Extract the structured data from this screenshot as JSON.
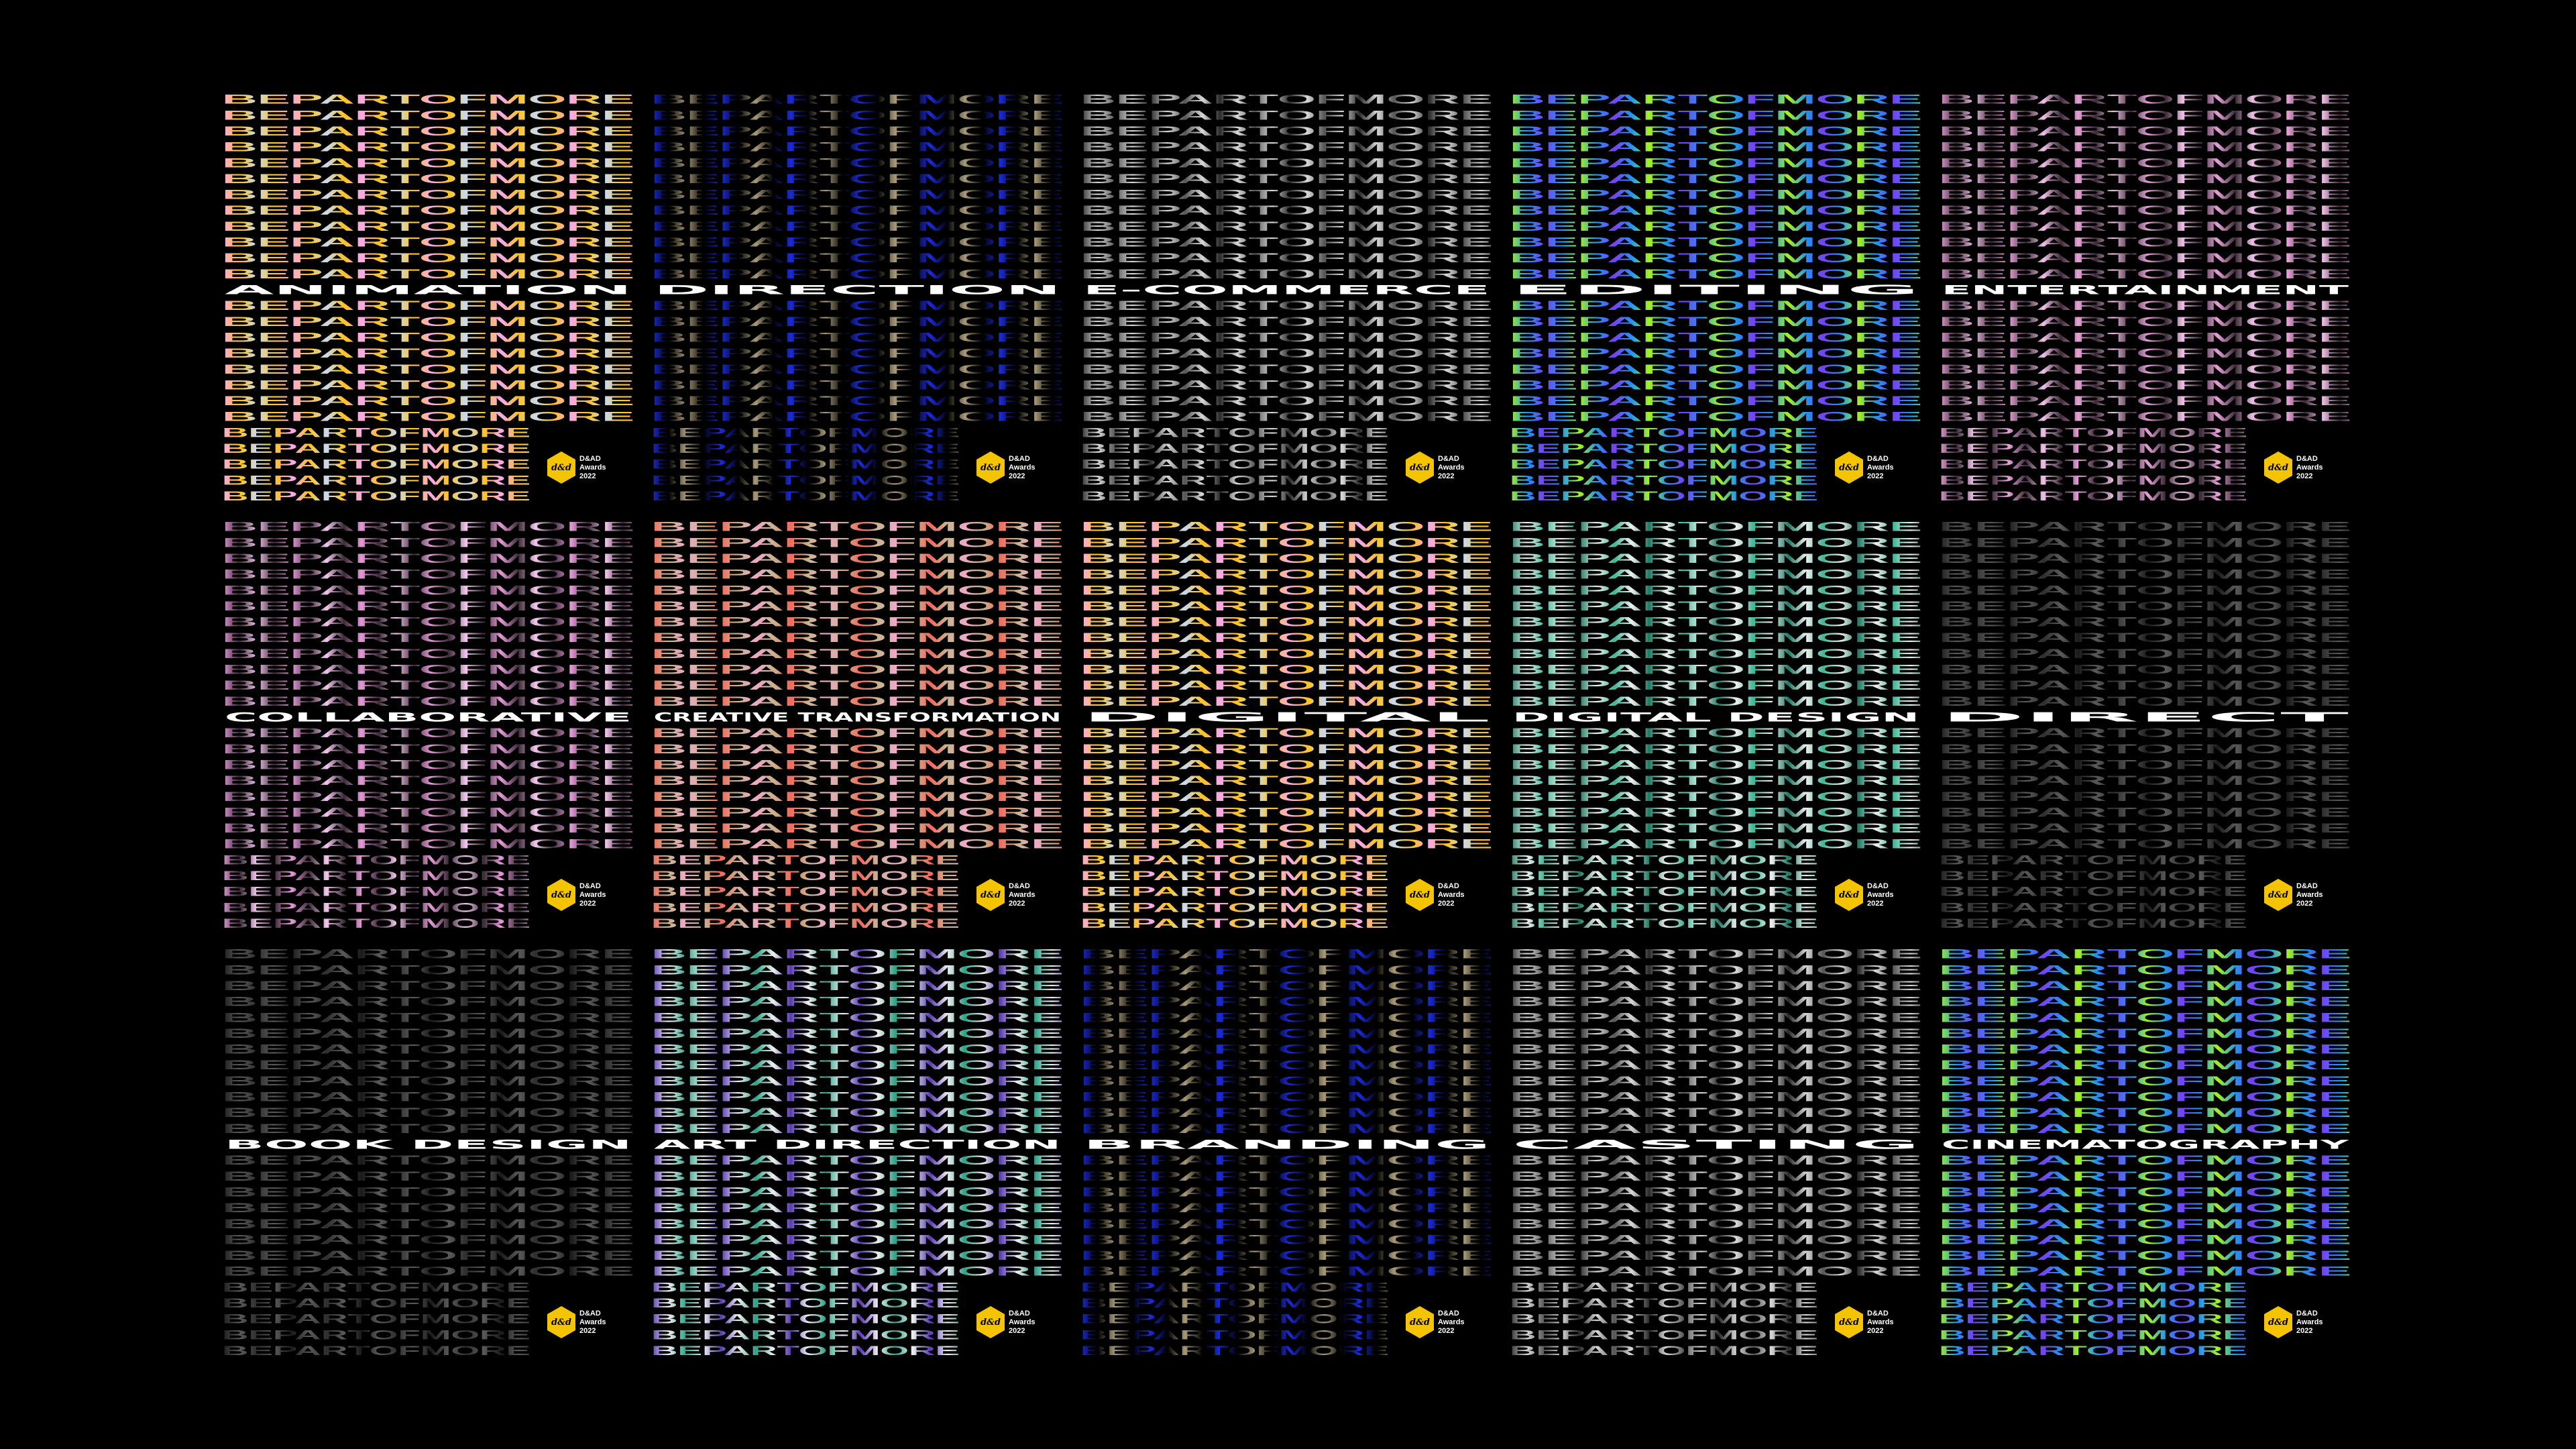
{
  "pattern_text": "BEPARTOFMORE",
  "badge": {
    "line1": "D&AD",
    "line2": "Awards",
    "line3": "2022",
    "logo": "d&ad-pencil-logo"
  },
  "tiles": [
    {
      "title": "ANIMATION",
      "colors": [
        "#f7a8f2",
        "#ffc31c",
        "#c9d9f2"
      ]
    },
    {
      "title": "DIRECTION",
      "colors": [
        "#1b2bd8",
        "#000000",
        "#a89a78"
      ]
    },
    {
      "title": "E-COMMERCE",
      "colors": [
        "#2a2a2a",
        "#d8d8d8",
        "#555555"
      ]
    },
    {
      "title": "EDITING",
      "colors": [
        "#a6f21e",
        "#2096f0",
        "#7a3ff2"
      ]
    },
    {
      "title": "ENTERTAINMENT",
      "colors": [
        "#e7a2d9",
        "#3a2a36",
        "#f0c0e8"
      ]
    },
    {
      "title": "COLLABORATIVE",
      "colors": [
        "#e59ad8",
        "#3a2a36",
        "#f4c6ee"
      ]
    },
    {
      "title": "CREATIVE TRANSFORMATION",
      "colors": [
        "#f26a5e",
        "#c8b48e",
        "#f0a8c8"
      ]
    },
    {
      "title": "DIGITAL",
      "colors": [
        "#f7a8f2",
        "#ffc31c",
        "#c9d9f2"
      ]
    },
    {
      "title": "DIGITAL DESIGN",
      "colors": [
        "#1f7a64",
        "#f0f0f0",
        "#3fb596"
      ]
    },
    {
      "title": "DIRECT",
      "colors": [
        "#1a1a1a",
        "#5a5a5a",
        "#2e2e2e"
      ]
    },
    {
      "title": "BOOK DESIGN",
      "colors": [
        "#1a1a1a",
        "#5a5a5a",
        "#2e2e2e"
      ]
    },
    {
      "title": "ART DIRECTION",
      "colors": [
        "#5a3ab0",
        "#f0f0f0",
        "#2fa088"
      ]
    },
    {
      "title": "BRANDING",
      "colors": [
        "#1b2bd8",
        "#000000",
        "#a89a78"
      ]
    },
    {
      "title": "CASTING",
      "colors": [
        "#2a2a2a",
        "#d8d8d8",
        "#555555"
      ]
    },
    {
      "title": "CINEMATOGRAPHY",
      "colors": [
        "#a6f21e",
        "#2096f0",
        "#7a3ff2"
      ]
    }
  ]
}
